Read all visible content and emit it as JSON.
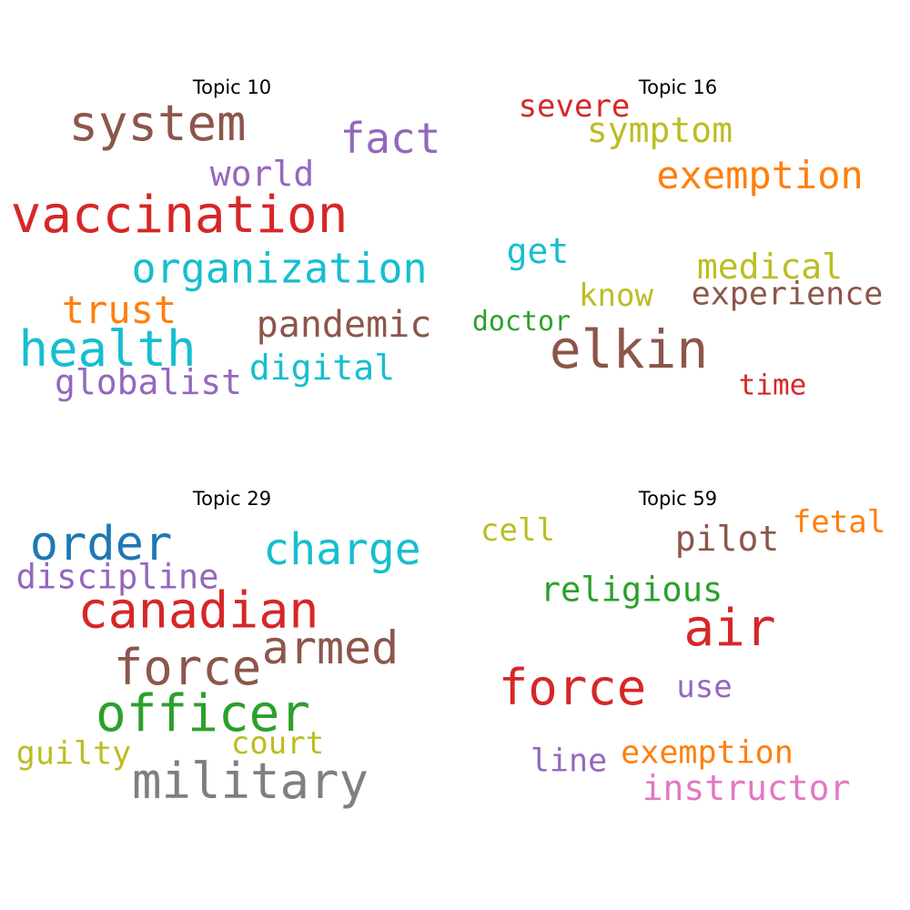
{
  "clouds": [
    {
      "title": "Topic 10",
      "words": [
        "system",
        "fact",
        "world",
        "vaccination",
        "organization",
        "trust",
        "pandemic",
        "health",
        "digital",
        "globalist"
      ]
    },
    {
      "title": "Topic 16",
      "words": [
        "severe",
        "symptom",
        "exemption",
        "get",
        "medical",
        "know",
        "experience",
        "doctor",
        "elkin",
        "time"
      ]
    },
    {
      "title": "Topic 29",
      "words": [
        "order",
        "charge",
        "discipline",
        "canadian",
        "armed",
        "force",
        "officer",
        "court",
        "guilty",
        "military"
      ]
    },
    {
      "title": "Topic 59",
      "words": [
        "cell",
        "fetal",
        "pilot",
        "religious",
        "air",
        "force",
        "use",
        "exemption",
        "line",
        "instructor"
      ]
    }
  ]
}
